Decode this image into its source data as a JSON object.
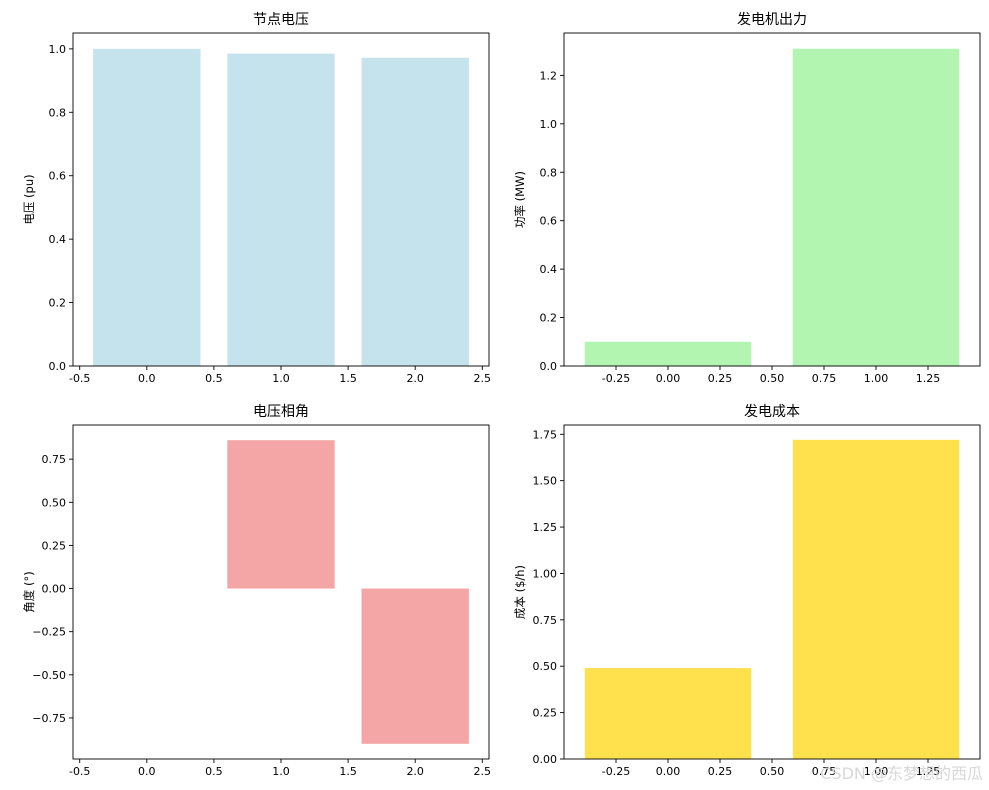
{
  "chart_data": [
    {
      "type": "bar",
      "title": "节点电压",
      "ylabel": "电压 (pu)",
      "x": [
        0,
        1,
        2
      ],
      "values": [
        1.0,
        0.985,
        0.972
      ],
      "bar_width": 0.8,
      "color": "#c5e3ed",
      "xlim": [
        -0.55,
        2.55
      ],
      "ylim": [
        0,
        1.05
      ],
      "xticks": [
        -0.5,
        0.0,
        0.5,
        1.0,
        1.5,
        2.0,
        2.5
      ],
      "xtick_labels": [
        "-0.5",
        "0.0",
        "0.5",
        "1.0",
        "1.5",
        "2.0",
        "2.5"
      ],
      "yticks": [
        0.0,
        0.2,
        0.4,
        0.6,
        0.8,
        1.0
      ],
      "ytick_labels": [
        "0.0",
        "0.2",
        "0.4",
        "0.6",
        "0.8",
        "1.0"
      ],
      "grid": false
    },
    {
      "type": "bar",
      "title": "发电机出力",
      "ylabel": "功率 (MW)",
      "x": [
        0,
        1
      ],
      "values": [
        0.1,
        1.31
      ],
      "bar_width": 0.8,
      "color": "#b1f5b1",
      "xlim": [
        -0.5,
        1.5
      ],
      "ylim": [
        0,
        1.375
      ],
      "xticks": [
        -0.25,
        0.0,
        0.25,
        0.5,
        0.75,
        1.0,
        1.25
      ],
      "xtick_labels": [
        "-0.25",
        "0.00",
        "0.25",
        "0.50",
        "0.75",
        "1.00",
        "1.25"
      ],
      "yticks": [
        0.0,
        0.2,
        0.4,
        0.6,
        0.8,
        1.0,
        1.2
      ],
      "ytick_labels": [
        "0.0",
        "0.2",
        "0.4",
        "0.6",
        "0.8",
        "1.0",
        "1.2"
      ],
      "grid": false
    },
    {
      "type": "bar",
      "title": "电压相角",
      "ylabel": "角度 (°)",
      "x": [
        0,
        1,
        2
      ],
      "values": [
        0.0,
        0.86,
        -0.9
      ],
      "bar_width": 0.8,
      "color": "#f4a6a6",
      "xlim": [
        -0.55,
        2.55
      ],
      "ylim": [
        -0.988,
        0.948
      ],
      "xticks": [
        -0.5,
        0.0,
        0.5,
        1.0,
        1.5,
        2.0,
        2.5
      ],
      "xtick_labels": [
        "-0.5",
        "0.0",
        "0.5",
        "1.0",
        "1.5",
        "2.0",
        "2.5"
      ],
      "yticks": [
        -0.75,
        -0.5,
        -0.25,
        0.0,
        0.25,
        0.5,
        0.75
      ],
      "ytick_labels": [
        "−0.75",
        "−0.50",
        "−0.25",
        "0.00",
        "0.25",
        "0.50",
        "0.75"
      ],
      "grid": false
    },
    {
      "type": "bar",
      "title": "发电成本",
      "ylabel": "成本 ($/h)",
      "x": [
        0,
        1
      ],
      "values": [
        0.49,
        1.72
      ],
      "bar_width": 0.8,
      "color": "#ffe14d",
      "xlim": [
        -0.5,
        1.5
      ],
      "ylim": [
        0,
        1.8
      ],
      "xticks": [
        -0.25,
        0.0,
        0.25,
        0.5,
        0.75,
        1.0,
        1.25
      ],
      "xtick_labels": [
        "-0.25",
        "0.00",
        "0.25",
        "0.50",
        "0.75",
        "1.00",
        "1.25"
      ],
      "yticks": [
        0.0,
        0.25,
        0.5,
        0.75,
        1.0,
        1.25,
        1.5,
        1.75
      ],
      "ytick_labels": [
        "0.00",
        "0.25",
        "0.50",
        "0.75",
        "1.00",
        "1.25",
        "1.50",
        "1.75"
      ],
      "grid": false
    }
  ],
  "watermark": "CSDN @东梦想的西瓜"
}
